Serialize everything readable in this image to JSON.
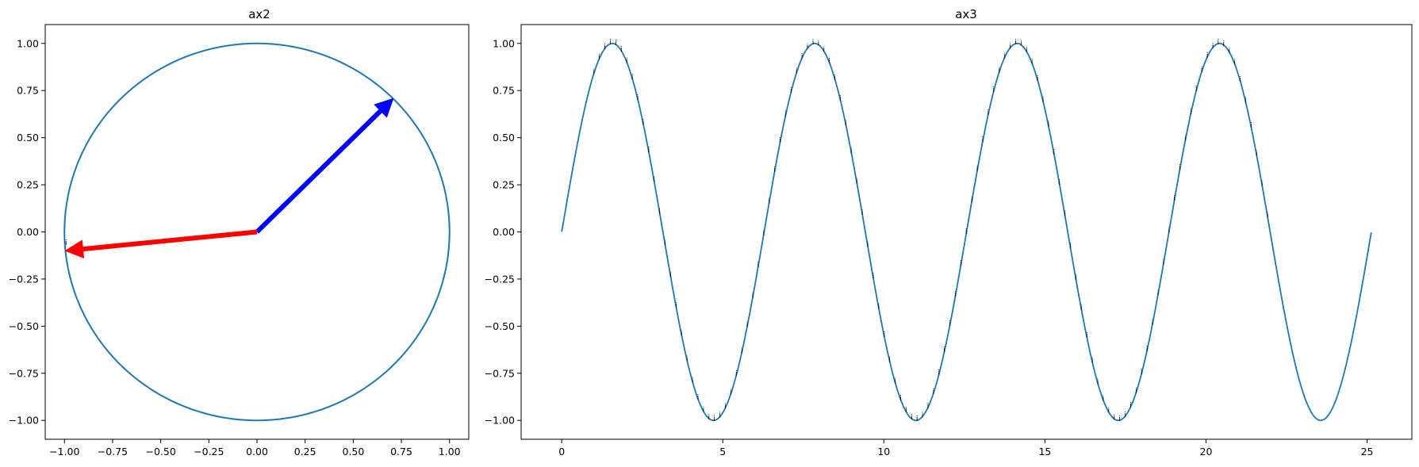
{
  "figure": {
    "background": "#ffffff"
  },
  "chart_data": [
    {
      "type": "line",
      "title": "ax2",
      "xlabel": "",
      "ylabel": "",
      "xlim": [
        -1.1,
        1.1
      ],
      "ylim": [
        -1.1,
        1.1
      ],
      "xticks": [
        -1.0,
        -0.75,
        -0.5,
        -0.25,
        0.0,
        0.25,
        0.5,
        0.75,
        1.0
      ],
      "xtick_labels": [
        "−1.00",
        "−0.75",
        "−0.50",
        "−0.25",
        "0.00",
        "0.25",
        "0.50",
        "0.75",
        "1.00"
      ],
      "yticks": [
        1.0,
        0.75,
        0.5,
        0.25,
        0.0,
        -0.25,
        -0.5,
        -0.75,
        -1.0
      ],
      "ytick_labels": [
        "1.00",
        "0.75",
        "0.50",
        "0.25",
        "0.00",
        "−0.25",
        "−0.50",
        "−0.75",
        "−1.00"
      ],
      "grid": false,
      "series": [
        {
          "kind": "unit-circle",
          "center": [
            0,
            0
          ],
          "radius": 1.0,
          "color": "#1f77b4"
        }
      ],
      "arrows": [
        {
          "from": [
            0,
            0
          ],
          "to": [
            0.707,
            0.707
          ],
          "color": "#0000ff"
        },
        {
          "from": [
            0,
            0
          ],
          "to": [
            -0.995,
            -0.1
          ],
          "color": "#ff0000"
        }
      ],
      "annotations": [
        {
          "text": "i",
          "x": -1.0,
          "y": -0.07
        }
      ]
    },
    {
      "type": "line",
      "title": "ax3",
      "xlabel": "",
      "ylabel": "",
      "xlim": [
        -1.26,
        26.39
      ],
      "ylim": [
        -1.1,
        1.1
      ],
      "xticks": [
        0,
        5,
        10,
        15,
        20,
        25
      ],
      "xtick_labels": [
        "0",
        "5",
        "10",
        "15",
        "20",
        "25"
      ],
      "yticks": [
        1.0,
        0.75,
        0.5,
        0.25,
        0.0,
        -0.25,
        -0.5,
        -0.75,
        -1.0
      ],
      "ytick_labels": [
        "1.00",
        "0.75",
        "0.50",
        "0.25",
        "0.00",
        "−0.25",
        "−0.50",
        "−0.75",
        "−1.00"
      ],
      "grid": false,
      "series": [
        {
          "kind": "sine",
          "function": "y = sin(x)",
          "x_range": [
            0,
            25.13
          ],
          "color": "#1f77b4"
        }
      ],
      "annotations": {
        "text": "i",
        "function": "y = sin(x)",
        "x_range": [
          1.0,
          22.0
        ],
        "step": 0.17
      }
    }
  ]
}
